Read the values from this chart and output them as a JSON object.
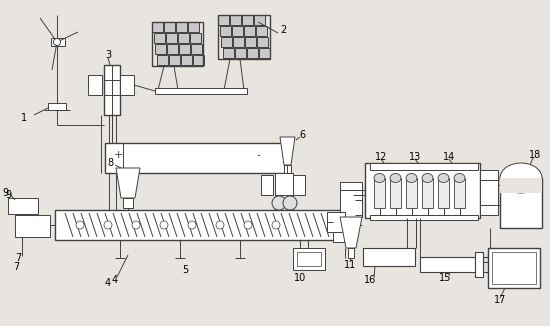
{
  "bg_color": "#e8e5e0",
  "line_color": "#404040",
  "fig_width": 5.5,
  "fig_height": 3.26,
  "dpi": 100
}
